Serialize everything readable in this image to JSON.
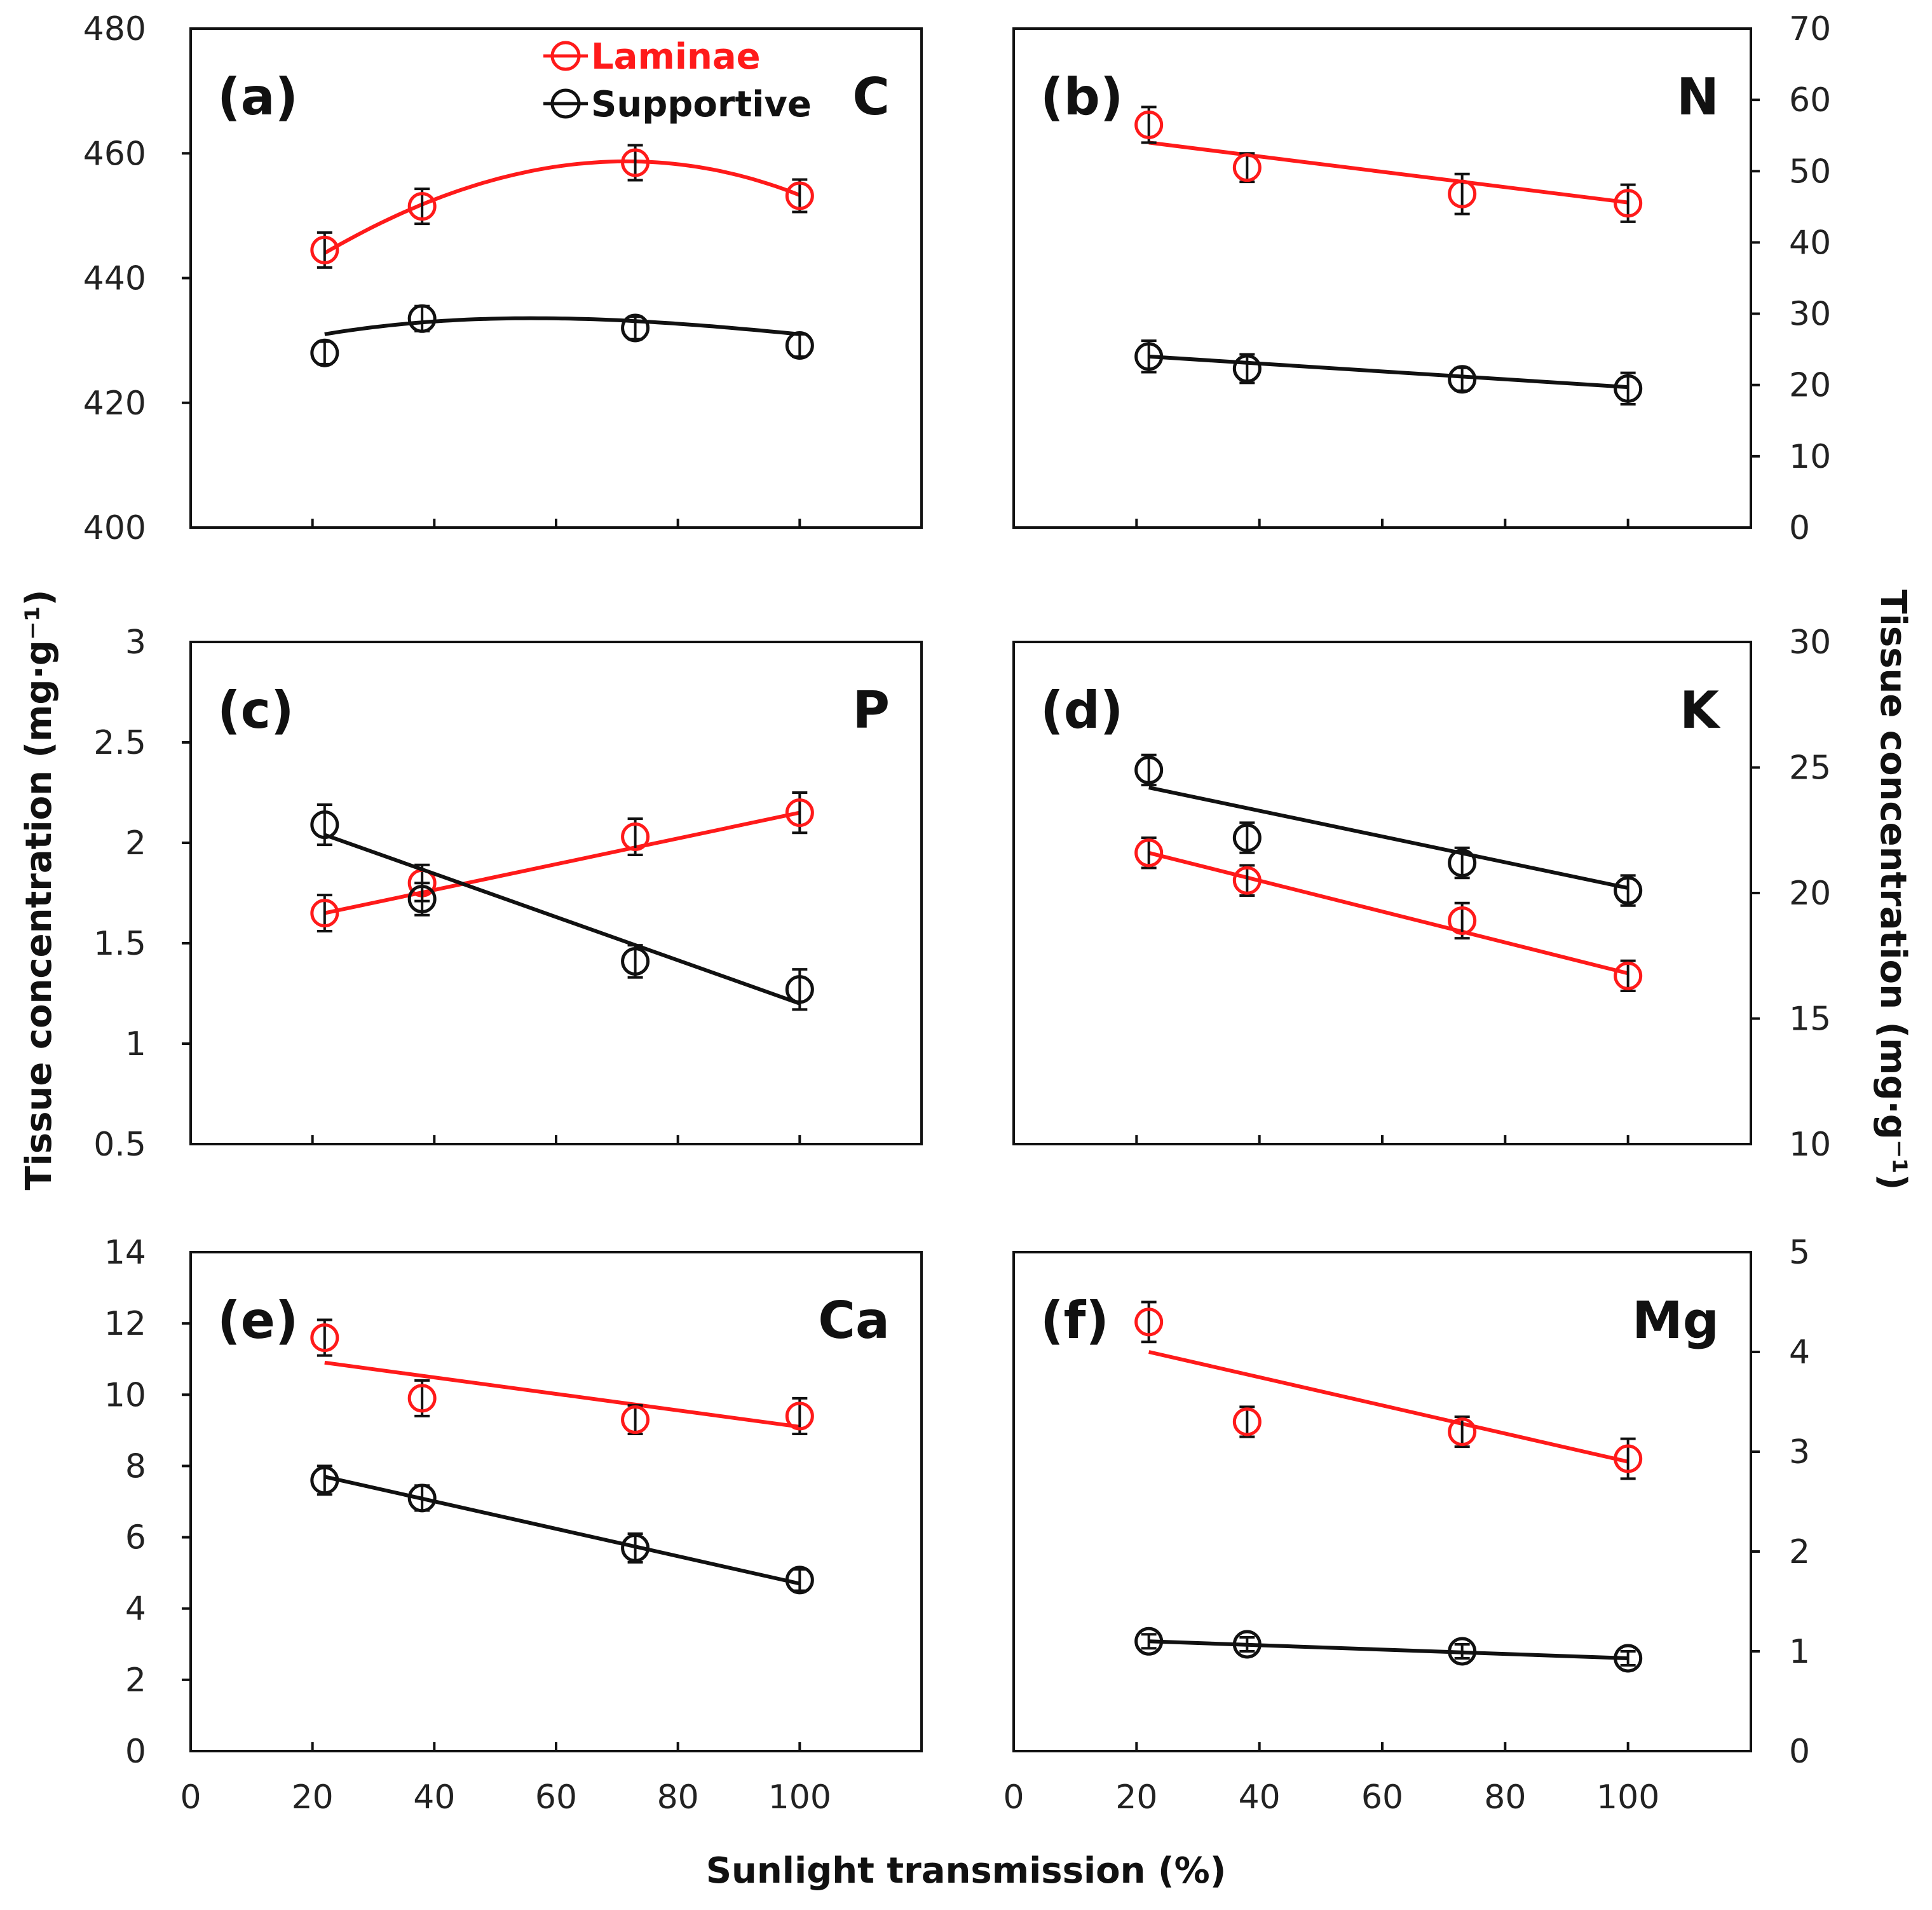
{
  "chart_data": {
    "type": "scatter",
    "xlabel": "Sunlight transmission (%)",
    "ylabel_left": "Tissue concentration (mg·g⁻¹)",
    "ylabel_right": "Tissue concentration (mg·g⁻¹)",
    "xlim": [
      0,
      120
    ],
    "xticks": [
      "0",
      "20",
      "40",
      "60",
      "80",
      "100"
    ],
    "legend": [
      {
        "name": "Laminae",
        "color": "#ff1a1a"
      },
      {
        "name": "Supportive",
        "color": "#111111"
      }
    ],
    "panels": [
      {
        "id": "a",
        "label": "(a)",
        "element": "C",
        "fit": "quadratic",
        "ylim": [
          400,
          480
        ],
        "yticks": [
          "400",
          "420",
          "440",
          "460",
          "480"
        ],
        "ytick_side": "left",
        "series": [
          {
            "name": "Laminae",
            "x": [
              22,
              38,
              73,
              100
            ],
            "y": [
              444.5,
              451.5,
              458.5,
              453.2
            ],
            "err": [
              2.8,
              2.8,
              2.8,
              2.6
            ],
            "fit": [
              444,
              451.8,
              458.7,
              453.3
            ]
          },
          {
            "name": "Supportive",
            "x": [
              22,
              38,
              73,
              100
            ],
            "y": [
              428,
              433.5,
              432,
              429.2
            ],
            "err": [
              1.8,
              2.0,
              1.8,
              1.8
            ],
            "fit": [
              431,
              432.9,
              433.1,
              431
            ]
          }
        ]
      },
      {
        "id": "b",
        "label": "(b)",
        "element": "N",
        "fit": "linear",
        "ylim": [
          0,
          70
        ],
        "yticks": [
          "0",
          "10",
          "20",
          "30",
          "40",
          "50",
          "60",
          "70"
        ],
        "ytick_side": "right",
        "series": [
          {
            "name": "Laminae",
            "x": [
              22,
              38,
              73,
              100
            ],
            "y": [
              56.5,
              50.5,
              46.8,
              45.5
            ],
            "err": [
              2.5,
              2.0,
              2.8,
              2.6
            ],
            "fit": [
              54,
              52.5,
              48.3,
              45.6
            ]
          },
          {
            "name": "Supportive",
            "x": [
              22,
              38,
              73,
              100
            ],
            "y": [
              24,
              22.3,
              20.8,
              19.5
            ],
            "err": [
              2.2,
              2.0,
              1.6,
              2.2
            ],
            "fit": [
              24,
              23,
              21.3,
              19.7
            ]
          }
        ]
      },
      {
        "id": "c",
        "label": "(c)",
        "element": "P",
        "fit": "linear",
        "ylim": [
          0.5,
          3
        ],
        "yticks": [
          "0.5",
          "1",
          "1.5",
          "2",
          "2.5",
          "3"
        ],
        "ytick_side": "left",
        "series": [
          {
            "name": "Laminae",
            "x": [
              22,
              38,
              73,
              100
            ],
            "y": [
              1.65,
              1.8,
              2.03,
              2.15
            ],
            "err": [
              0.09,
              0.09,
              0.09,
              0.1
            ],
            "fit": [
              1.65,
              1.75,
              1.97,
              2.15
            ]
          },
          {
            "name": "Supportive",
            "x": [
              22,
              38,
              73,
              100
            ],
            "y": [
              2.09,
              1.72,
              1.41,
              1.27
            ],
            "err": [
              0.1,
              0.08,
              0.08,
              0.1
            ],
            "fit": [
              2.04,
              1.87,
              1.49,
              1.2
            ]
          }
        ]
      },
      {
        "id": "d",
        "label": "(d)",
        "element": "K",
        "fit": "linear",
        "ylim": [
          10,
          30
        ],
        "yticks": [
          "10",
          "15",
          "20",
          "25",
          "30"
        ],
        "ytick_side": "right",
        "series": [
          {
            "name": "Laminae",
            "x": [
              22,
              38,
              73,
              100
            ],
            "y": [
              21.6,
              20.5,
              18.9,
              16.7
            ],
            "err": [
              0.6,
              0.6,
              0.7,
              0.6
            ],
            "fit": [
              21.6,
              20.7,
              18.5,
              16.8
            ]
          },
          {
            "name": "Supportive",
            "x": [
              22,
              38,
              73,
              100
            ],
            "y": [
              24.9,
              22.2,
              21.2,
              20.1
            ],
            "err": [
              0.6,
              0.6,
              0.6,
              0.6
            ],
            "fit": [
              24.2,
              23.3,
              21.6,
              20.2
            ]
          }
        ]
      },
      {
        "id": "e",
        "label": "(e)",
        "element": "Ca",
        "fit": "linear",
        "ylim": [
          0,
          14
        ],
        "yticks": [
          "0",
          "2",
          "4",
          "6",
          "8",
          "10",
          "12",
          "14"
        ],
        "ytick_side": "left",
        "series": [
          {
            "name": "Laminae",
            "x": [
              22,
              38,
              73,
              100
            ],
            "y": [
              11.6,
              9.9,
              9.3,
              9.4
            ],
            "err": [
              0.5,
              0.5,
              0.4,
              0.5
            ],
            "fit": [
              10.9,
              10.5,
              9.7,
              9.1
            ]
          },
          {
            "name": "Supportive",
            "x": [
              22,
              38,
              73,
              100
            ],
            "y": [
              7.6,
              7.1,
              5.7,
              4.8
            ],
            "err": [
              0.4,
              0.35,
              0.4,
              0.3
            ],
            "fit": [
              7.7,
              7,
              5.7,
              4.7
            ]
          }
        ]
      },
      {
        "id": "f",
        "label": "(f)",
        "element": "Mg",
        "fit": "linear",
        "ylim": [
          0,
          5
        ],
        "yticks": [
          "0",
          "1",
          "2",
          "3",
          "4",
          "5"
        ],
        "ytick_side": "right",
        "series": [
          {
            "name": "Laminae",
            "x": [
              22,
              38,
              73,
              100
            ],
            "y": [
              4.3,
              3.3,
              3.2,
              2.93
            ],
            "err": [
              0.2,
              0.15,
              0.15,
              0.2
            ],
            "fit": [
              4.0,
              3.75,
              3.35,
              2.9
            ]
          },
          {
            "name": "Supportive",
            "x": [
              22,
              38,
              73,
              100
            ],
            "y": [
              1.1,
              1.07,
              1.0,
              0.93
            ],
            "err": [
              0.07,
              0.07,
              0.07,
              0.07
            ],
            "fit": [
              1.1,
              1.07,
              1.0,
              0.93
            ]
          }
        ]
      }
    ]
  }
}
